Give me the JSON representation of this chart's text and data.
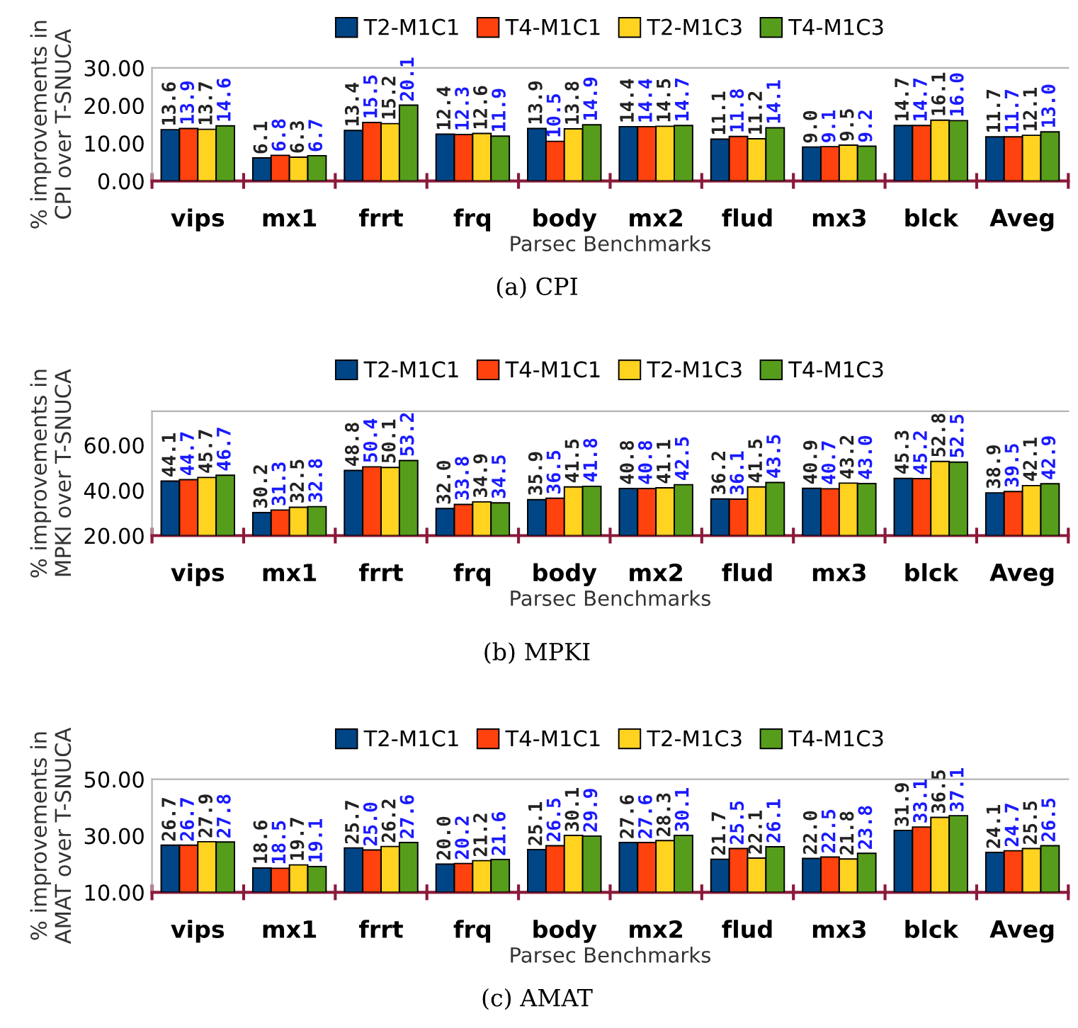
{
  "chart_data": [
    {
      "type": "bar",
      "title": "(a) CPI",
      "xlabel": "Parsec Benchmarks",
      "ylabel": "% improvements in\nCPI over T-SNUCA",
      "categories": [
        "vips",
        "mx1",
        "frrt",
        "frq",
        "body",
        "mx2",
        "flud",
        "mx3",
        "blck",
        "Aveg"
      ],
      "legend": "top",
      "grid": false,
      "ylim": [
        0,
        30
      ],
      "yticks": [
        {
          "value": 0,
          "label": "0.00"
        },
        {
          "value": 10,
          "label": "10.00"
        },
        {
          "value": 20,
          "label": "20.00"
        },
        {
          "value": 30,
          "label": "30.00"
        }
      ],
      "series": [
        {
          "name": "T2-M1C1",
          "color": "#004586",
          "values": [
            13.6,
            6.1,
            13.4,
            12.4,
            13.9,
            14.4,
            11.1,
            9.0,
            14.7,
            11.7
          ],
          "value_labels": [
            "13.6",
            "6.1",
            "13.4",
            "12.4",
            "13.9",
            "14.4",
            "11.1",
            "9.0",
            "14.7",
            "11.7"
          ]
        },
        {
          "name": "T4-M1C1",
          "color": "#ff420e",
          "values": [
            13.9,
            6.8,
            15.5,
            12.3,
            10.5,
            14.4,
            11.8,
            9.1,
            14.7,
            11.7
          ],
          "value_labels": [
            "13.9",
            "6.8",
            "15.5",
            "12.3",
            "10.5",
            "14.4",
            "11.8",
            "9.1",
            "14.7",
            "11.7"
          ]
        },
        {
          "name": "T2-M1C3",
          "color": "#ffd320",
          "values": [
            13.7,
            6.3,
            15.2,
            12.6,
            13.8,
            14.5,
            11.2,
            9.5,
            16.1,
            12.1
          ],
          "value_labels": [
            "13.7",
            "6.3",
            "15.2",
            "12.6",
            "13.8",
            "14.5",
            "11.2",
            "9.5",
            "16.1",
            "12.1"
          ]
        },
        {
          "name": "T4-M1C3",
          "color": "#579d1c",
          "values": [
            14.6,
            6.7,
            20.1,
            11.9,
            14.9,
            14.7,
            14.1,
            9.2,
            16.0,
            13.0
          ],
          "value_labels": [
            "14.6",
            "6.7",
            "20.1",
            "11.9",
            "14.9",
            "14.7",
            "14.1",
            "9.2",
            "16.0",
            "13.0"
          ]
        }
      ]
    },
    {
      "type": "bar",
      "title": "(b) MPKI",
      "xlabel": "Parsec Benchmarks",
      "ylabel": "% improvements in\nMPKI over T-SNUCA",
      "categories": [
        "vips",
        "mx1",
        "frrt",
        "frq",
        "body",
        "mx2",
        "flud",
        "mx3",
        "blck",
        "Aveg"
      ],
      "legend": "top",
      "grid": false,
      "ylim": [
        20,
        75
      ],
      "yticks": [
        {
          "value": 20,
          "label": "20.00"
        },
        {
          "value": 40,
          "label": "40.00"
        },
        {
          "value": 60,
          "label": "60.00"
        }
      ],
      "series": [
        {
          "name": "T2-M1C1",
          "color": "#004586",
          "values": [
            44.1,
            30.2,
            48.8,
            32.0,
            35.9,
            40.8,
            36.2,
            40.9,
            45.3,
            38.9
          ],
          "value_labels": [
            "44.1",
            "30.2",
            "48.8",
            "32.0",
            "35.9",
            "40.8",
            "36.2",
            "40.9",
            "45.3",
            "38.9"
          ]
        },
        {
          "name": "T4-M1C1",
          "color": "#ff420e",
          "values": [
            44.7,
            31.3,
            50.4,
            33.8,
            36.5,
            40.8,
            36.1,
            40.7,
            45.2,
            39.5
          ],
          "value_labels": [
            "44.7",
            "31.3",
            "50.4",
            "33.8",
            "36.5",
            "40.8",
            "36.1",
            "40.7",
            "45.2",
            "39.5"
          ]
        },
        {
          "name": "T2-M1C3",
          "color": "#ffd320",
          "values": [
            45.7,
            32.5,
            50.1,
            34.9,
            41.5,
            41.1,
            41.5,
            43.2,
            52.8,
            42.1
          ],
          "value_labels": [
            "45.7",
            "32.5",
            "50.1",
            "34.9",
            "41.5",
            "41.1",
            "41.5",
            "43.2",
            "52.8",
            "42.1"
          ]
        },
        {
          "name": "T4-M1C3",
          "color": "#579d1c",
          "values": [
            46.7,
            32.8,
            53.2,
            34.5,
            41.8,
            42.5,
            43.5,
            43.0,
            52.5,
            42.9
          ],
          "value_labels": [
            "46.7",
            "32.8",
            "53.2",
            "34.5",
            "41.8",
            "42.5",
            "43.5",
            "43.0",
            "52.5",
            "42.9"
          ]
        }
      ]
    },
    {
      "type": "bar",
      "title": "(c) AMAT",
      "xlabel": "Parsec Benchmarks",
      "ylabel": "% improvements in\nAMAT over T-SNUCA",
      "categories": [
        "vips",
        "mx1",
        "frrt",
        "frq",
        "body",
        "mx2",
        "flud",
        "mx3",
        "blck",
        "Aveg"
      ],
      "legend": "top",
      "grid": false,
      "ylim": [
        10,
        50
      ],
      "yticks": [
        {
          "value": 10,
          "label": "10.00"
        },
        {
          "value": 30,
          "label": "30.00"
        },
        {
          "value": 50,
          "label": "50.00"
        }
      ],
      "series": [
        {
          "name": "T2-M1C1",
          "color": "#004586",
          "values": [
            26.7,
            18.6,
            25.7,
            20.0,
            25.1,
            27.6,
            21.7,
            22.0,
            31.9,
            24.1
          ],
          "value_labels": [
            "26.7",
            "18.6",
            "25.7",
            "20.0",
            "25.1",
            "27.6",
            "21.7",
            "22.0",
            "31.9",
            "24.1"
          ]
        },
        {
          "name": "T4-M1C1",
          "color": "#ff420e",
          "values": [
            26.7,
            18.5,
            25.0,
            20.2,
            26.5,
            27.6,
            25.5,
            22.5,
            33.1,
            24.7
          ],
          "value_labels": [
            "26.7",
            "18.5",
            "25.0",
            "20.2",
            "26.5",
            "27.6",
            "25.5",
            "22.5",
            "33.1",
            "24.7"
          ]
        },
        {
          "name": "T2-M1C3",
          "color": "#ffd320",
          "values": [
            27.9,
            19.7,
            26.2,
            21.2,
            30.1,
            28.3,
            22.1,
            21.8,
            36.5,
            25.5
          ],
          "value_labels": [
            "27.9",
            "19.7",
            "26.2",
            "21.2",
            "30.1",
            "28.3",
            "22.1",
            "21.8",
            "36.5",
            "25.5"
          ]
        },
        {
          "name": "T4-M1C3",
          "color": "#579d1c",
          "values": [
            27.8,
            19.1,
            27.6,
            21.6,
            29.9,
            30.1,
            26.1,
            23.8,
            37.1,
            26.5
          ],
          "value_labels": [
            "27.8",
            "19.1",
            "27.6",
            "21.6",
            "29.9",
            "30.1",
            "26.1",
            "23.8",
            "37.1",
            "26.5"
          ]
        }
      ]
    }
  ]
}
